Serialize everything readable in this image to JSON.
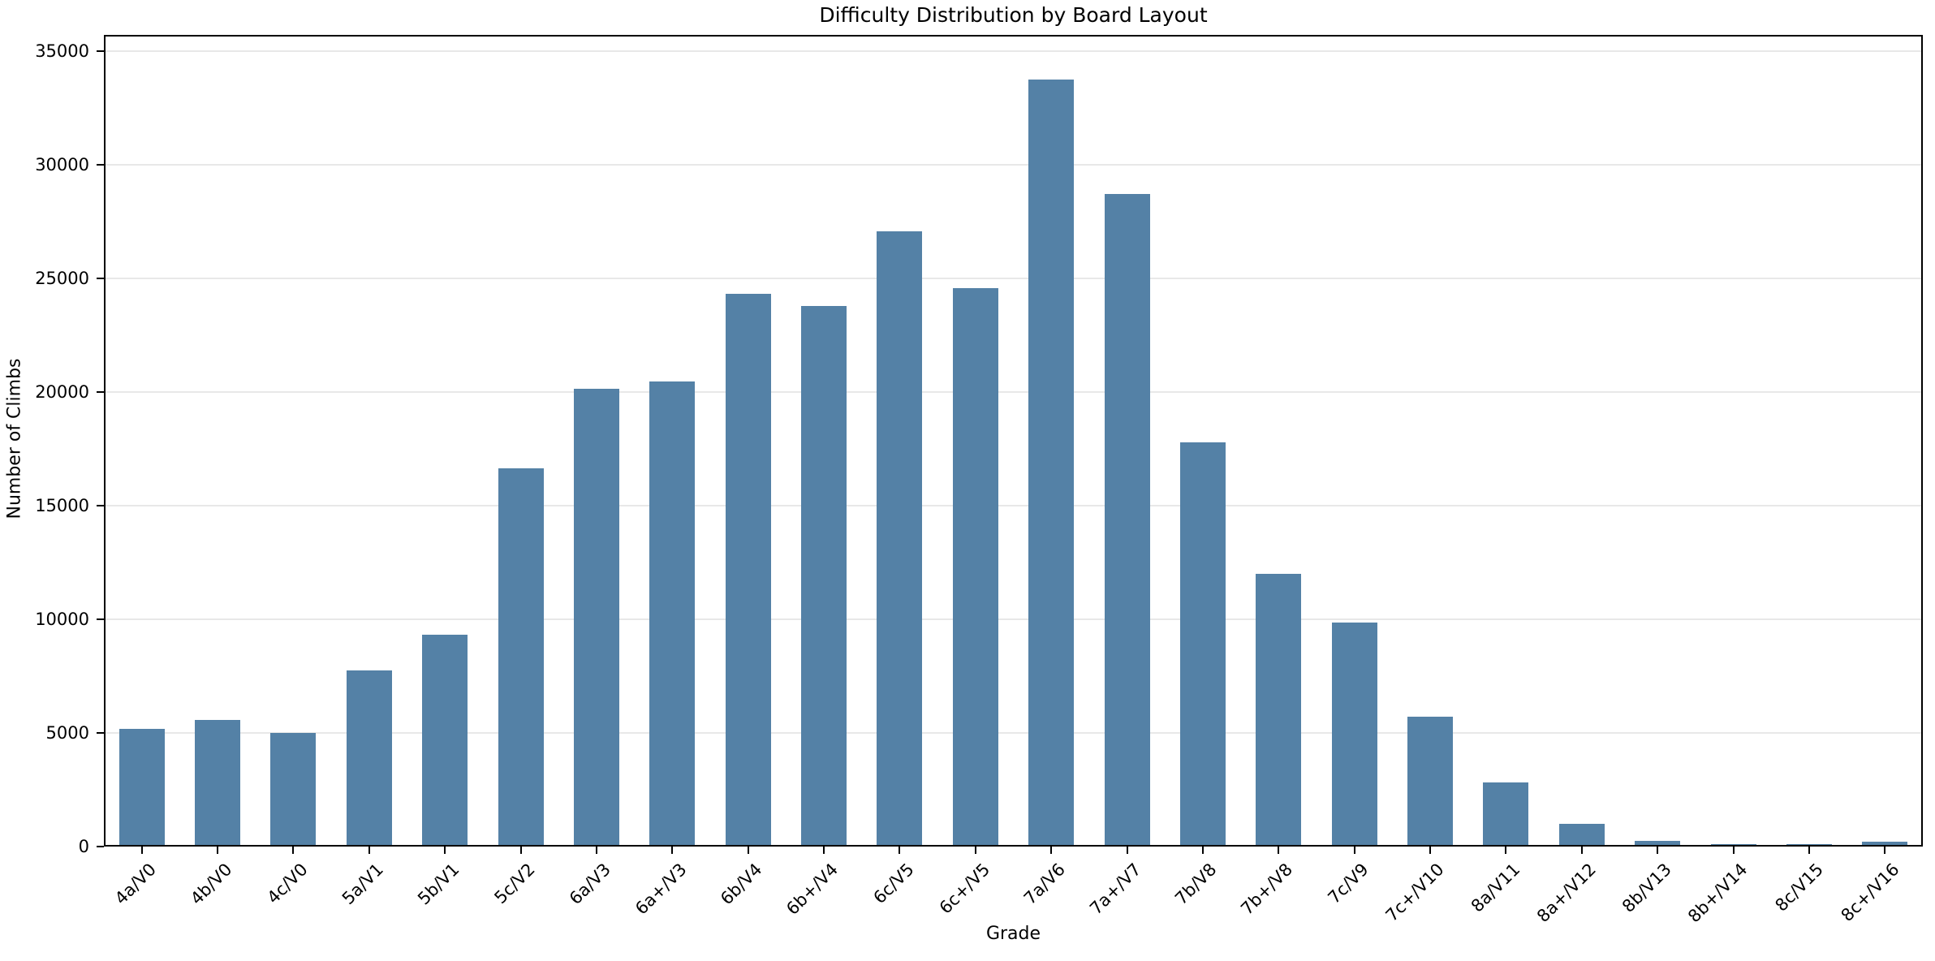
{
  "figure": {
    "background": "#ffffff"
  },
  "chart_data": {
    "type": "bar",
    "title": "Difficulty Distribution by Board Layout",
    "xlabel": "Grade",
    "ylabel": "Number of Climbs",
    "categories": [
      "4a/V0",
      "4b/V0",
      "4c/V0",
      "5a/V1",
      "5b/V1",
      "5c/V2",
      "6a/V3",
      "6a+/V3",
      "6b/V4",
      "6b+/V4",
      "6c/V5",
      "6c+/V5",
      "7a/V6",
      "7a+/V7",
      "7b/V8",
      "7b+/V8",
      "7c/V9",
      "7c+/V10",
      "8a/V11",
      "8a+/V12",
      "8b/V13",
      "8b+/V14",
      "8c/V15",
      "8c+/V16"
    ],
    "values": [
      5170,
      5570,
      4990,
      7740,
      9310,
      16630,
      20120,
      20440,
      24300,
      23760,
      27050,
      24550,
      33750,
      28720,
      17770,
      11990,
      9850,
      5710,
      2820,
      1000,
      250,
      90,
      90,
      215
    ],
    "ylim": [
      0,
      35700
    ],
    "yticks": [
      0,
      5000,
      10000,
      15000,
      20000,
      25000,
      30000,
      35000
    ],
    "grid": "y",
    "legend": "none",
    "x_tick_rotation": 45,
    "bar_width_fraction": 0.6,
    "colors": {
      "bar": "#5481a6",
      "grid": "#e8e8e8",
      "axis": "#000000",
      "text": "#000000"
    }
  }
}
